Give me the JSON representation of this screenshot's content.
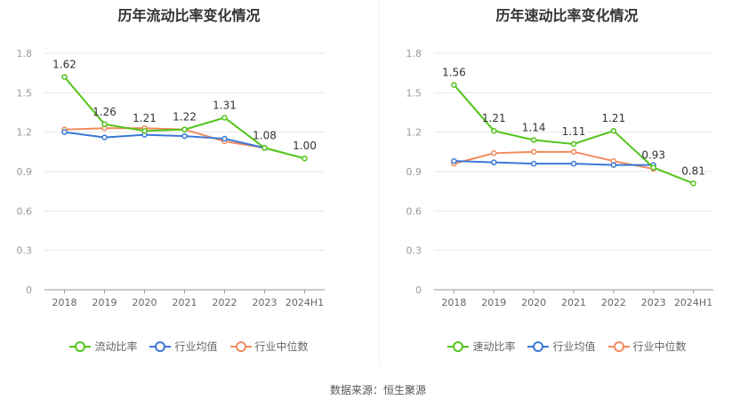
{
  "chart_data": [
    {
      "type": "line",
      "title": "历年流动比率变化情况",
      "categories": [
        "2018",
        "2019",
        "2020",
        "2021",
        "2022",
        "2023",
        "2024H1"
      ],
      "ylim": [
        0,
        1.8
      ],
      "yticks": [
        "0",
        "0.3",
        "0.6",
        "0.9",
        "1.2",
        "1.5",
        "1.8"
      ],
      "grid": true,
      "legend_position": "bottom",
      "series": [
        {
          "name": "流动比率",
          "color": "#52c41a",
          "values": [
            1.62,
            1.26,
            1.21,
            1.22,
            1.31,
            1.08,
            1.0
          ],
          "labels": [
            "1.62",
            "1.26",
            "1.21",
            "1.22",
            "1.31",
            "1.08",
            "1.00"
          ]
        },
        {
          "name": "行业均值",
          "color": "#3a78d8",
          "values": [
            1.2,
            1.16,
            1.18,
            1.17,
            1.15,
            1.08,
            null
          ],
          "labels": []
        },
        {
          "name": "行业中位数",
          "color": "#f08a5d",
          "values": [
            1.22,
            1.23,
            1.23,
            1.22,
            1.13,
            1.08,
            null
          ],
          "labels": []
        }
      ]
    },
    {
      "type": "line",
      "title": "历年速动比率变化情况",
      "categories": [
        "2018",
        "2019",
        "2020",
        "2021",
        "2022",
        "2023",
        "2024H1"
      ],
      "ylim": [
        0,
        1.8
      ],
      "yticks": [
        "0",
        "0.3",
        "0.6",
        "0.9",
        "1.2",
        "1.5",
        "1.8"
      ],
      "grid": true,
      "legend_position": "bottom",
      "series": [
        {
          "name": "速动比率",
          "color": "#52c41a",
          "values": [
            1.56,
            1.21,
            1.14,
            1.11,
            1.21,
            0.93,
            0.81
          ],
          "labels": [
            "1.56",
            "1.21",
            "1.14",
            "1.11",
            "1.21",
            "0.93",
            "0.81"
          ]
        },
        {
          "name": "行业均值",
          "color": "#3a78d8",
          "values": [
            0.98,
            0.97,
            0.96,
            0.96,
            0.95,
            0.95,
            null
          ],
          "labels": []
        },
        {
          "name": "行业中位数",
          "color": "#f08a5d",
          "values": [
            0.96,
            1.04,
            1.05,
            1.05,
            0.98,
            0.92,
            null
          ],
          "labels": []
        }
      ]
    }
  ],
  "footer": {
    "source": "数据来源：恒生聚源"
  }
}
